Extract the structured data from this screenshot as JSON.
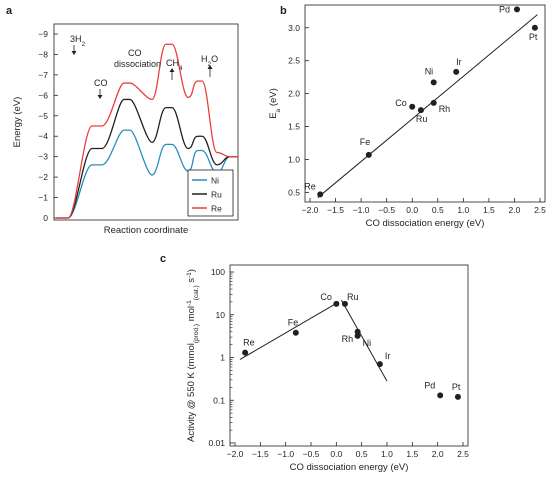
{
  "chart_data": [
    {
      "panel": "a",
      "type": "line",
      "xlabel": "Reaction coordinate",
      "ylabel": "Energy (eV)",
      "ylim": [
        -9,
        0
      ],
      "yticks": [
        0,
        -1,
        -2,
        -3,
        -4,
        -5,
        -6,
        -7,
        -8,
        -9
      ],
      "annotations": [
        {
          "text": "3H",
          "sub": "2",
          "arrow": true,
          "stage": 0.45
        },
        {
          "text": "CO",
          "arrow": true,
          "stage": 1.1
        },
        {
          "text": "CO",
          "arrow": false,
          "stage": 2.2
        },
        {
          "text": "dissociation",
          "arrow": false,
          "stage": 2.2
        },
        {
          "text": "CH",
          "sub": "4",
          "arrow": true,
          "stage": 4.0
        },
        {
          "text": "H",
          "sub": "2",
          "post": "O",
          "arrow": true,
          "stage": 5.0
        }
      ],
      "legend": {
        "placement": "bottom-right"
      },
      "series": [
        {
          "name": "Ni",
          "color": "#2b8cbe",
          "levels": [
            0,
            -2.6,
            -4.3,
            -2.1,
            -3.6,
            -2.3,
            -3.3,
            -2.2,
            -3.0
          ]
        },
        {
          "name": "Ru",
          "color": "#231f20",
          "levels": [
            0,
            -3.4,
            -5.8,
            -3.7,
            -5.4,
            -3.4,
            -4.0,
            -2.6,
            -3.0
          ]
        },
        {
          "name": "Re",
          "color": "#e8413c",
          "levels": [
            0,
            -4.5,
            -6.6,
            -5.8,
            -8.5,
            -5.9,
            -6.7,
            -3.2,
            -3.0
          ]
        }
      ]
    },
    {
      "panel": "b",
      "type": "scatter",
      "xlabel": "CO dissociation energy (eV)",
      "ylabel": "E",
      "ylabel_sub": "a",
      "ylabel_unit": "(eV)",
      "xlim": [
        -2.0,
        2.5
      ],
      "ylim": [
        0.4,
        3.3
      ],
      "xticks": [
        "-2.0",
        "-1.5",
        "-1.0",
        "-0.5",
        "0.0",
        "0.5",
        "1.0",
        "1.5",
        "2.0",
        "2.5"
      ],
      "yticks": [
        "0.5",
        "1.0",
        "1.5",
        "2.0",
        "2.5",
        "3.0"
      ],
      "points": [
        {
          "label": "Re",
          "x": -1.8,
          "y": 0.47
        },
        {
          "label": "Fe",
          "x": -0.85,
          "y": 1.07
        },
        {
          "label": "Co",
          "x": 0.0,
          "y": 1.8
        },
        {
          "label": "Ru",
          "x": 0.17,
          "y": 1.75
        },
        {
          "label": "Rh",
          "x": 0.42,
          "y": 1.86
        },
        {
          "label": "Ni",
          "x": 0.42,
          "y": 2.17
        },
        {
          "label": "Ir",
          "x": 0.86,
          "y": 2.33
        },
        {
          "label": "Pd",
          "x": 2.05,
          "y": 3.28
        },
        {
          "label": "Pt",
          "x": 2.4,
          "y": 3.0
        }
      ],
      "fit_line": {
        "x": [
          -1.85,
          2.45
        ],
        "y": [
          0.42,
          3.2
        ]
      }
    },
    {
      "panel": "c",
      "type": "scatter",
      "xlabel": "CO dissociation energy (eV)",
      "ylabel": "Activity @ 550 K (mmol(prod.) mol-1(cat.) s-1)",
      "yscale": "log",
      "xlim": [
        -2.0,
        2.5
      ],
      "ylim": [
        0.01,
        100
      ],
      "xticks": [
        "-2.0",
        "-1.5",
        "-1.0",
        "-0.5",
        "0.0",
        "0.5",
        "1.0",
        "1.5",
        "2.0",
        "2.5"
      ],
      "yticks": [
        "100",
        "10",
        "1",
        "0.1",
        "0.01"
      ],
      "points": [
        {
          "label": "Re",
          "x": -1.8,
          "y": 1.3
        },
        {
          "label": "Fe",
          "x": -0.8,
          "y": 3.8
        },
        {
          "label": "Co",
          "x": 0.0,
          "y": 18
        },
        {
          "label": "Ru",
          "x": 0.17,
          "y": 18
        },
        {
          "label": "Rh",
          "x": 0.42,
          "y": 4.0
        },
        {
          "label": "Ni",
          "x": 0.42,
          "y": 3.2
        },
        {
          "label": "Ir",
          "x": 0.86,
          "y": 0.7
        },
        {
          "label": "Pd",
          "x": 2.05,
          "y": 0.13
        },
        {
          "label": "Pt",
          "x": 2.4,
          "y": 0.12
        }
      ],
      "fit_lines": [
        {
          "x": [
            -1.9,
            0.05
          ],
          "y": [
            0.9,
            20
          ]
        },
        {
          "x": [
            0.1,
            1.0
          ],
          "y": [
            22,
            0.28
          ]
        }
      ]
    }
  ]
}
